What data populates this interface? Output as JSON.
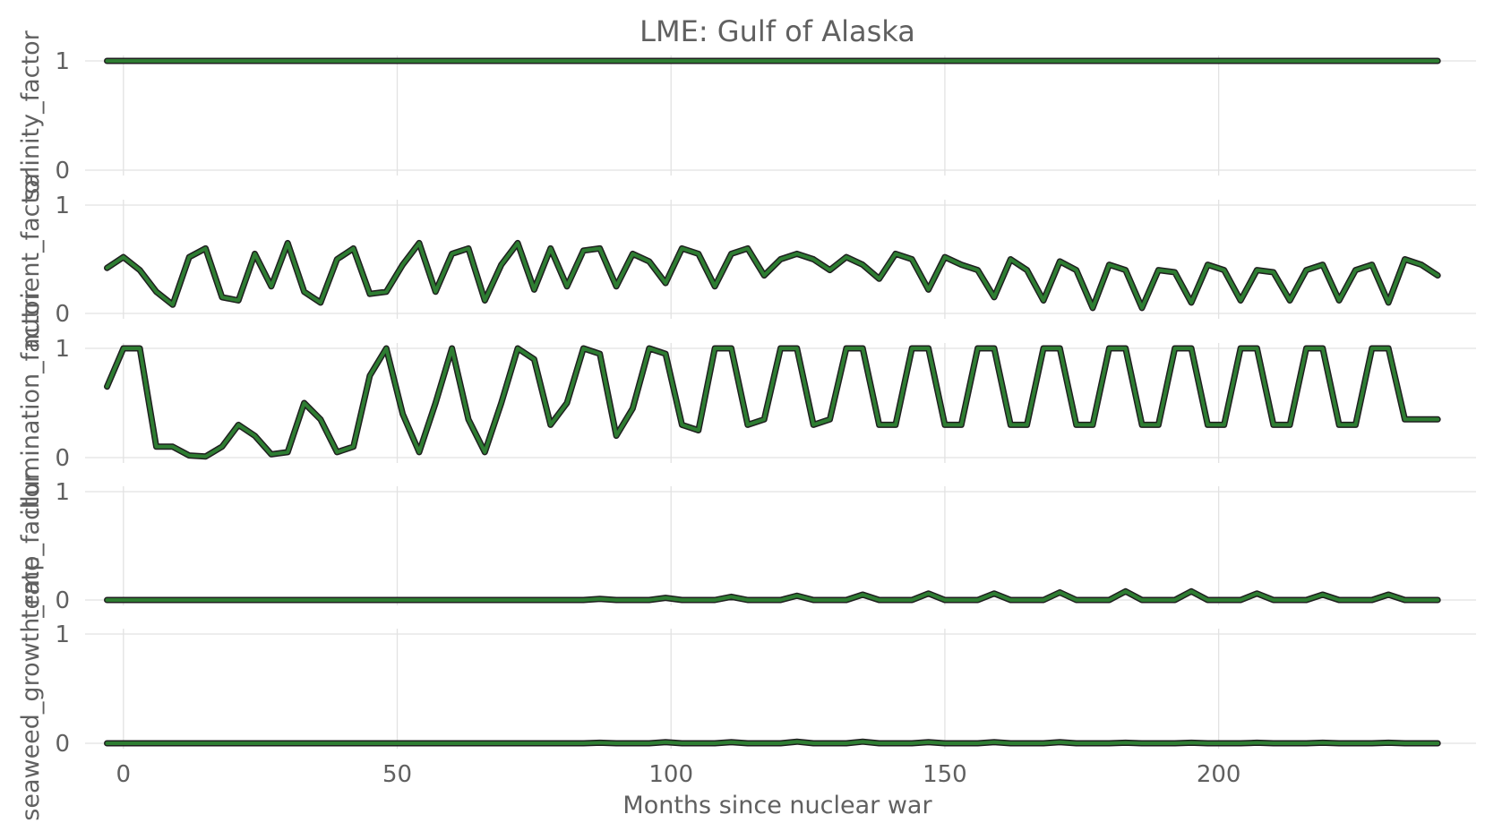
{
  "chart_data": {
    "type": "line",
    "title": "LME: Gulf of Alaska",
    "xlabel": "Months since nuclear war",
    "xlim": [
      -7,
      247
    ],
    "x_ticks": [
      0,
      50,
      100,
      150,
      200
    ],
    "x_start": -3,
    "x_step": 3,
    "grid": true,
    "line_color": "#2e7d32",
    "outline_color": "#1f1f1f",
    "panels": [
      {
        "name": "salinity_factor",
        "ylabel": "salinity_factor",
        "ylim": [
          0,
          1
        ],
        "y_ticks": [
          0,
          1
        ],
        "values": [
          1,
          1,
          1,
          1,
          1,
          1,
          1,
          1,
          1,
          1,
          1,
          1,
          1,
          1,
          1,
          1,
          1,
          1,
          1,
          1,
          1,
          1,
          1,
          1,
          1,
          1,
          1,
          1,
          1,
          1,
          1,
          1,
          1,
          1,
          1,
          1,
          1,
          1,
          1,
          1,
          1,
          1,
          1,
          1,
          1,
          1,
          1,
          1,
          1,
          1,
          1,
          1,
          1,
          1,
          1,
          1,
          1,
          1,
          1,
          1,
          1,
          1,
          1,
          1,
          1,
          1,
          1,
          1,
          1,
          1,
          1,
          1,
          1,
          1,
          1,
          1,
          1,
          1,
          1,
          1,
          1,
          1
        ]
      },
      {
        "name": "nutrient_factor",
        "ylabel": "nutrient_factor",
        "ylim": [
          0,
          1
        ],
        "y_ticks": [
          0,
          1
        ],
        "values": [
          0.42,
          0.52,
          0.4,
          0.2,
          0.08,
          0.52,
          0.6,
          0.15,
          0.12,
          0.55,
          0.25,
          0.65,
          0.2,
          0.1,
          0.5,
          0.6,
          0.18,
          0.2,
          0.45,
          0.65,
          0.2,
          0.55,
          0.6,
          0.12,
          0.45,
          0.65,
          0.22,
          0.6,
          0.25,
          0.58,
          0.6,
          0.25,
          0.55,
          0.48,
          0.28,
          0.6,
          0.55,
          0.25,
          0.55,
          0.6,
          0.35,
          0.5,
          0.55,
          0.5,
          0.4,
          0.52,
          0.45,
          0.32,
          0.55,
          0.5,
          0.22,
          0.52,
          0.45,
          0.4,
          0.15,
          0.5,
          0.4,
          0.12,
          0.48,
          0.4,
          0.05,
          0.45,
          0.4,
          0.05,
          0.4,
          0.38,
          0.1,
          0.45,
          0.4,
          0.12,
          0.4,
          0.38,
          0.12,
          0.4,
          0.45,
          0.12,
          0.4,
          0.45,
          0.1,
          0.5,
          0.45,
          0.35
        ]
      },
      {
        "name": "illumination_factor",
        "ylabel": "illumination_factor",
        "ylim": [
          0,
          1
        ],
        "y_ticks": [
          0,
          1
        ],
        "values": [
          0.65,
          1,
          1,
          0.1,
          0.1,
          0.02,
          0.01,
          0.1,
          0.3,
          0.2,
          0.03,
          0.05,
          0.5,
          0.35,
          0.05,
          0.1,
          0.75,
          1,
          0.4,
          0.05,
          0.5,
          1,
          0.35,
          0.05,
          0.5,
          1,
          0.9,
          0.3,
          0.5,
          1,
          0.95,
          0.2,
          0.45,
          1,
          0.95,
          0.3,
          0.25,
          1,
          1,
          0.3,
          0.35,
          1,
          1,
          0.3,
          0.35,
          1,
          1,
          0.3,
          0.3,
          1,
          1,
          0.3,
          0.3,
          1,
          1,
          0.3,
          0.3,
          1,
          1,
          0.3,
          0.3,
          1,
          1,
          0.3,
          0.3,
          1,
          1,
          0.3,
          0.3,
          1,
          1,
          0.3,
          0.3,
          1,
          1,
          0.3,
          0.3,
          1,
          1,
          0.35,
          0.35,
          0.35
        ]
      },
      {
        "name": "temp_factor",
        "ylabel": "temp_factor",
        "ylim": [
          0,
          1
        ],
        "y_ticks": [
          0,
          1
        ],
        "values": [
          0,
          0,
          0,
          0,
          0,
          0,
          0,
          0,
          0,
          0,
          0,
          0,
          0,
          0,
          0,
          0,
          0,
          0,
          0,
          0,
          0,
          0,
          0,
          0,
          0,
          0,
          0,
          0,
          0,
          0,
          0.01,
          0,
          0,
          0,
          0.02,
          0,
          0,
          0,
          0.03,
          0,
          0,
          0,
          0.04,
          0,
          0,
          0,
          0.05,
          0,
          0,
          0,
          0.06,
          0,
          0,
          0,
          0.06,
          0,
          0,
          0,
          0.07,
          0,
          0,
          0,
          0.08,
          0,
          0,
          0,
          0.08,
          0,
          0,
          0,
          0.06,
          0,
          0,
          0,
          0.05,
          0,
          0,
          0,
          0.05,
          0,
          0,
          0
        ]
      },
      {
        "name": "seaweed_growth_rate",
        "ylabel": "seaweed_growth_rate",
        "ylim": [
          0,
          1
        ],
        "y_ticks": [
          0,
          1
        ],
        "values": [
          0,
          0,
          0,
          0,
          0,
          0,
          0,
          0,
          0,
          0,
          0,
          0,
          0,
          0,
          0,
          0,
          0,
          0,
          0,
          0,
          0,
          0,
          0,
          0,
          0,
          0,
          0,
          0,
          0,
          0,
          0.005,
          0,
          0,
          0,
          0.01,
          0,
          0,
          0,
          0.01,
          0,
          0,
          0,
          0.015,
          0,
          0,
          0,
          0.015,
          0,
          0,
          0,
          0.01,
          0,
          0,
          0,
          0.01,
          0,
          0,
          0,
          0.01,
          0,
          0,
          0,
          0.005,
          0,
          0,
          0,
          0.005,
          0,
          0,
          0,
          0.005,
          0,
          0,
          0,
          0.005,
          0,
          0,
          0,
          0.005,
          0,
          0,
          0
        ]
      }
    ]
  }
}
